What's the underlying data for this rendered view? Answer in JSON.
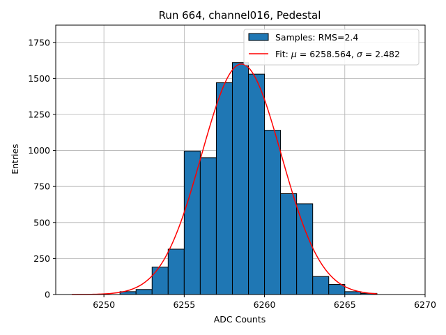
{
  "chart_data": {
    "type": "bar",
    "title": "Run 664, channel016, Pedestal",
    "xlabel": "ADC Counts",
    "ylabel": "Entries",
    "xlim": [
      6247,
      6270
    ],
    "ylim": [
      0,
      1870
    ],
    "grid": true,
    "legend_position": "top-right",
    "xticks": [
      6250,
      6255,
      6260,
      6265,
      6270
    ],
    "yticks": [
      0,
      250,
      500,
      750,
      1000,
      1250,
      1500,
      1750
    ],
    "histogram": {
      "name": "Samples: RMS=2.4",
      "color": "#1f77b4",
      "edgecolor": "#000000",
      "bin_edges": [
        6251,
        6252,
        6253,
        6254,
        6255,
        6256,
        6257,
        6258,
        6259,
        6260,
        6261,
        6262,
        6263,
        6264,
        6265,
        6266,
        6267
      ],
      "values": [
        20,
        35,
        190,
        315,
        995,
        950,
        1470,
        1610,
        1530,
        1140,
        700,
        630,
        125,
        70,
        20,
        8
      ]
    },
    "fit": {
      "name": "Fit: μ = 6258.564, σ = 2.482",
      "label_text": "Fit:  = 6258.564,  = 2.482",
      "mu": 6258.564,
      "sigma": 2.482,
      "amplitude": 1600,
      "x_range": [
        6248,
        6267
      ],
      "color": "#ff0000"
    }
  }
}
